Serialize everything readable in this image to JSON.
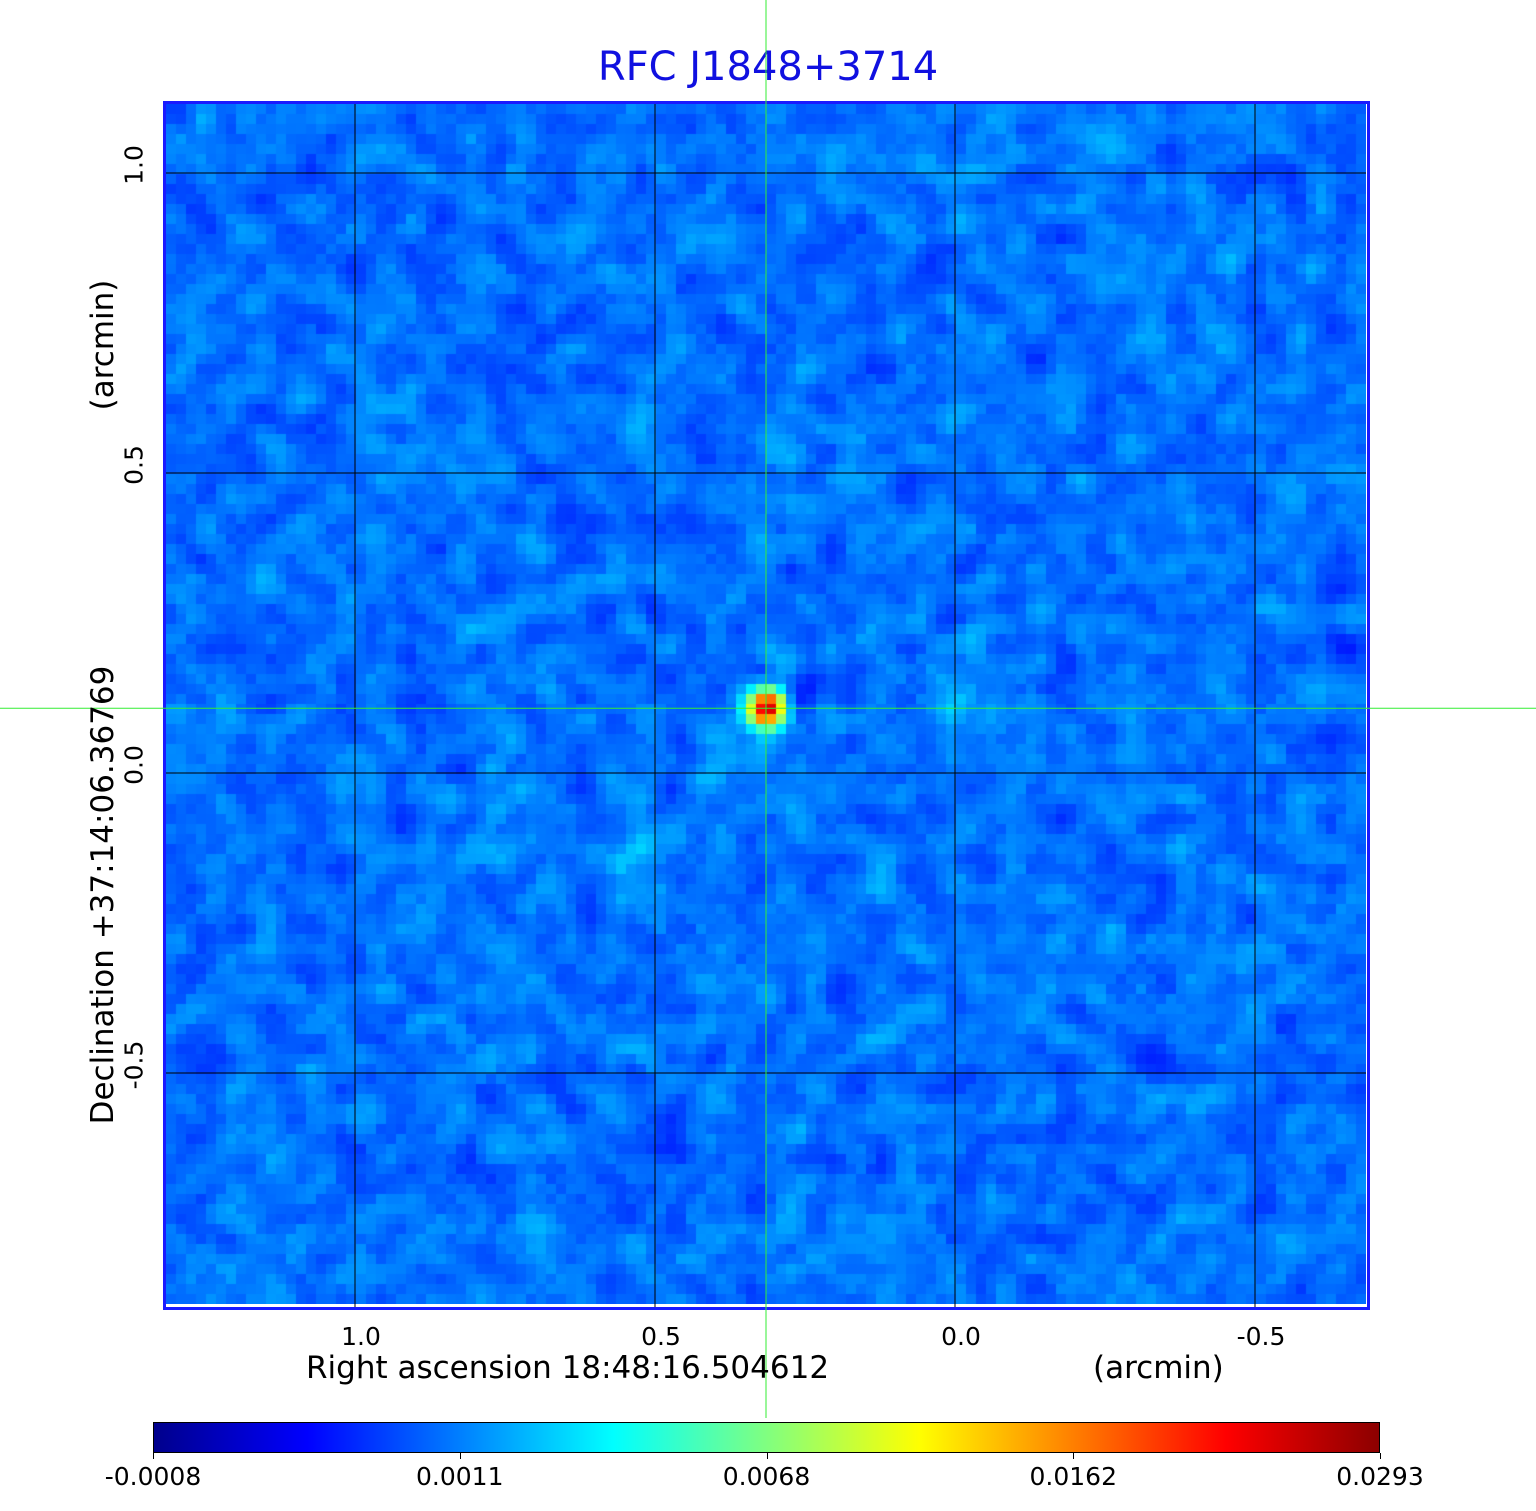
{
  "chart_data": {
    "type": "heatmap",
    "title": "RFC J1848+3714",
    "xlabel": "Right ascension  18:48:16.504612",
    "xunit": "(arcmin)",
    "ylabel": "Declination  +37:14:06.36769",
    "yunit": "(arcmin)",
    "x_ticks": [
      {
        "value": 1.0,
        "label": "1.0"
      },
      {
        "value": 0.5,
        "label": "0.5"
      },
      {
        "value": 0.0,
        "label": "0.0"
      },
      {
        "value": -0.5,
        "label": "-0.5"
      }
    ],
    "y_ticks": [
      {
        "value": 1.0,
        "label": "1.0"
      },
      {
        "value": 0.5,
        "label": "0.5"
      },
      {
        "value": 0.0,
        "label": "0.0"
      },
      {
        "value": -0.5,
        "label": "-0.5"
      }
    ],
    "xlim": [
      1.32,
      -0.69
    ],
    "ylim": [
      -0.89,
      1.12
    ],
    "grid": true,
    "colormap": "jet",
    "colorbar": {
      "position": "bottom",
      "ticks": [
        "-0.0008",
        "0.0011",
        "0.0068",
        "0.0162",
        "0.0293"
      ],
      "range": [
        -0.0008,
        0.0293
      ]
    },
    "peak": {
      "x": 0.315,
      "y": 0.108,
      "value": 0.0293
    },
    "secondary_features": [
      {
        "x": 0.0,
        "y": 0.13,
        "note_level": "cyan"
      },
      {
        "x": 0.54,
        "y": -0.13,
        "note_level": "cyan"
      }
    ],
    "crosshair": {
      "x": 0.315,
      "y": 0.108,
      "color": "#33ee33"
    },
    "frame_color": "#1a1aff",
    "grid_color": "#000000",
    "title_color": "#1010e0"
  }
}
